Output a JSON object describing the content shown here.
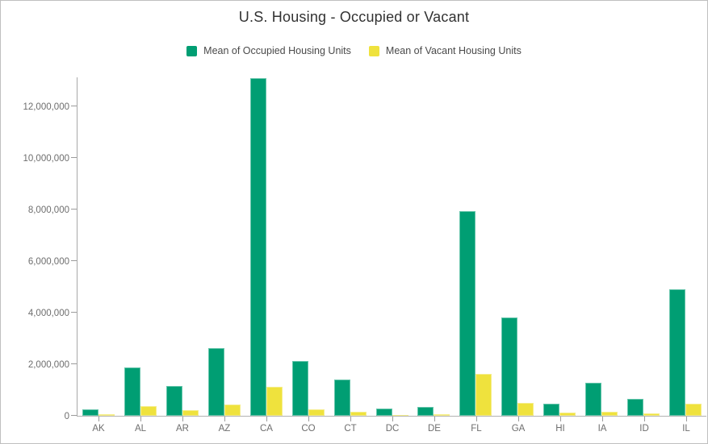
{
  "frame": {
    "background": "#ffffff",
    "border_color": "#bfbfbf"
  },
  "chart_data": {
    "type": "bar",
    "title": "U.S. Housing - Occupied or Vacant",
    "xlabel": "",
    "ylabel": "",
    "grid": "off",
    "legend_position": "top",
    "ylim": [
      0,
      13500000
    ],
    "y_ticks": [
      "0",
      "2,000,000",
      "4,000,000",
      "6,000,000",
      "8,000,000",
      "10,000,000",
      "12,000,000"
    ],
    "y_tick_values": [
      0,
      2000000,
      4000000,
      6000000,
      8000000,
      10000000,
      12000000
    ],
    "categories": [
      "AK",
      "AL",
      "AR",
      "AZ",
      "CA",
      "CO",
      "CT",
      "DC",
      "DE",
      "FL",
      "GA",
      "HI",
      "IA",
      "ID",
      "IL"
    ],
    "series": [
      {
        "name": "Mean of Occupied Housing Units",
        "color": "#009e73",
        "values": [
          250000,
          1880000,
          1170000,
          2640000,
          13100000,
          2140000,
          1400000,
          280000,
          350000,
          7950000,
          3820000,
          480000,
          1280000,
          650000,
          4900000
        ]
      },
      {
        "name": "Mean of Vacant Housing Units",
        "color": "#efe23d",
        "values": [
          70000,
          380000,
          220000,
          440000,
          1130000,
          240000,
          160000,
          40000,
          60000,
          1630000,
          500000,
          110000,
          160000,
          100000,
          480000
        ]
      }
    ],
    "colors": {
      "axis_line": "#a9a9a9",
      "tick_mark": "#9b9b9b",
      "tick_label": "#6e6e6e",
      "title_text": "#323232",
      "legend_text": "#4a4a4a"
    }
  }
}
